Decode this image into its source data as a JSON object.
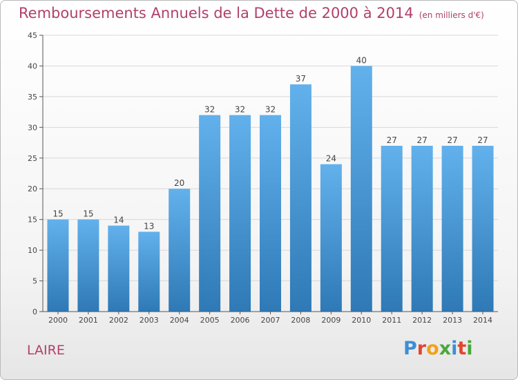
{
  "header": {
    "title": "Remboursements Annuels de la Dette de 2000 à 2014",
    "subtitle": "(en milliers d'€)"
  },
  "footer": {
    "place": "LAIRE",
    "logo": "Proxiti"
  },
  "colors": {
    "title": "#b0406a",
    "bar_top": "#62b1ec",
    "bar_bottom": "#2e79b6",
    "grid": "#d8d8d8"
  },
  "chart_data": {
    "type": "bar",
    "title": "Remboursements Annuels de la Dette de 2000 à 2014",
    "subtitle": "(en milliers d'€)",
    "xlabel": "",
    "ylabel": "",
    "categories": [
      "2000",
      "2001",
      "2002",
      "2003",
      "2004",
      "2005",
      "2006",
      "2007",
      "2008",
      "2009",
      "2010",
      "2011",
      "2012",
      "2013",
      "2014"
    ],
    "values": [
      15,
      15,
      14,
      13,
      20,
      32,
      32,
      32,
      37,
      24,
      40,
      27,
      27,
      27,
      27
    ],
    "ylim": [
      0,
      45
    ],
    "yticks": [
      0,
      5,
      10,
      15,
      20,
      25,
      30,
      35,
      40,
      45
    ],
    "grid": true,
    "data_labels": true
  }
}
